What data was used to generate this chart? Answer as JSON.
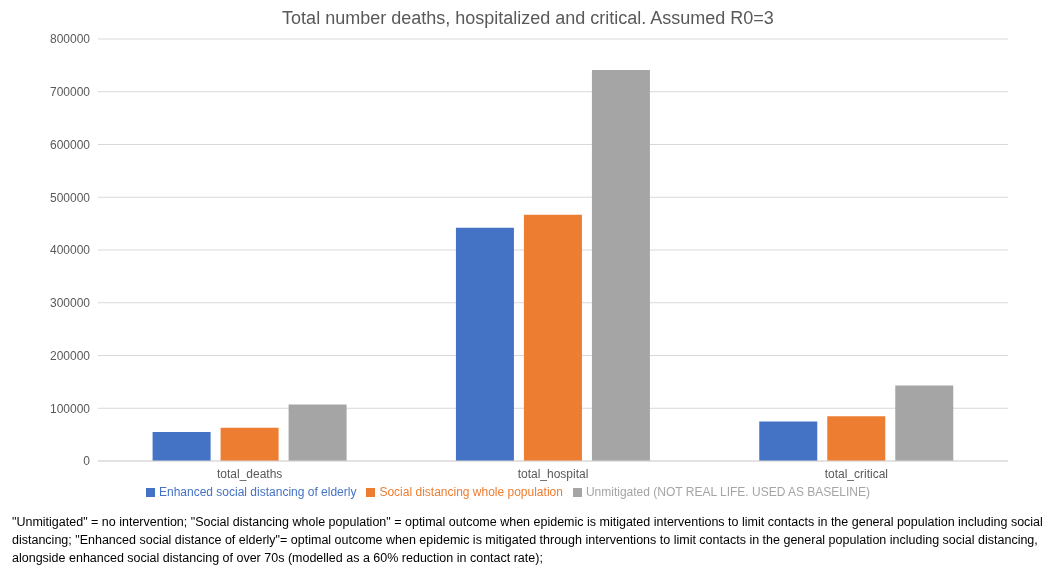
{
  "chart_data": {
    "type": "bar",
    "title": "Total number deaths, hospitalized and critical. Assumed R0=3",
    "categories": [
      "total_deaths",
      "total_hospital",
      "total_critical"
    ],
    "series": [
      {
        "name": "Enhanced social distancing of elderly",
        "color": "#4472c4",
        "values": [
          55000,
          442000,
          75000
        ]
      },
      {
        "name": "Social distancing whole population",
        "color": "#ed7d31",
        "values": [
          63000,
          467000,
          85000
        ]
      },
      {
        "name": "Unmitigated (NOT REAL LIFE. USED AS BASELINE)",
        "color": "#a5a5a5",
        "values": [
          107000,
          741000,
          143000
        ]
      }
    ],
    "ylim": [
      0,
      800000
    ],
    "yticks": [
      0,
      100000,
      200000,
      300000,
      400000,
      500000,
      600000,
      700000,
      800000
    ],
    "grid": "y",
    "legend": "bottom",
    "annotations": [
      "\"Unmitigated\" = no intervention; \"Social distancing whole population\" = optimal outcome when epidemic is mitigated interventions to limit contacts in the general population including social distancing; \"Enhanced social distance of elderly\"= optimal outcome when epidemic is mitigated through interventions to limit contacts in the general population including social distancing, alongside enhanced social distancing of over 70s (modelled as a 60% reduction in contact rate);"
    ]
  }
}
